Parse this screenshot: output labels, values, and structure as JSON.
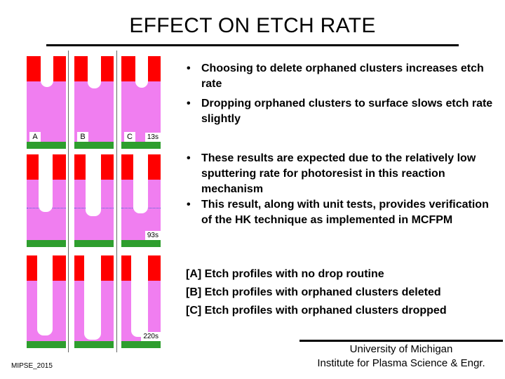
{
  "title": "EFFECT ON ETCH RATE",
  "bullets": [
    "Choosing to delete orphaned clusters increases etch rate",
    "Dropping orphaned clusters to surface slows etch rate slightly",
    "These results are expected due to the relatively low sputtering rate for photoresist in this reaction mechanism",
    "This result, along with unit tests, provides verification of the HK technique as implemented in MCFPM"
  ],
  "captions": [
    "[A] Etch profiles with no drop routine",
    "[B] Etch profiles with orphaned clusters deleted",
    "[C] Etch profiles with orphaned clusters dropped"
  ],
  "figure": {
    "column_labels": [
      "A",
      "B",
      "C"
    ],
    "time_labels": [
      "13s",
      "93s",
      "220s"
    ],
    "colors": {
      "photoresist": "#ff0000",
      "substrate": "#f07ef0",
      "stop_layer": "#2e9e2e",
      "trench": "#ffffff",
      "reference_line": "#4a62d6"
    }
  },
  "footer": {
    "bullet_symbol": "•",
    "line1": "University of Michigan",
    "line2": "Institute for Plasma Science & Engr.",
    "left": "MIPSE_2015"
  }
}
